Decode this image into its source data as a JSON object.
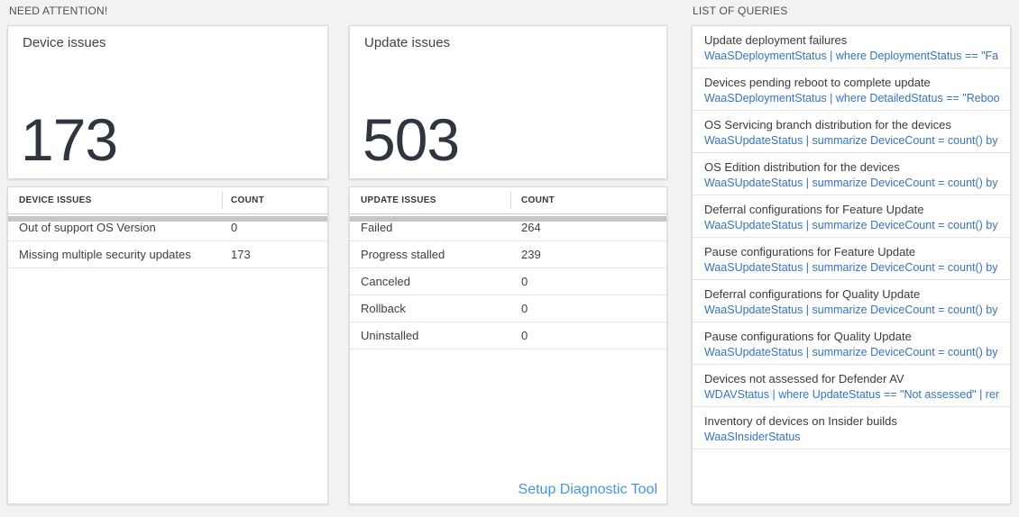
{
  "sections": {
    "need_attention_label": "NEED ATTENTION!",
    "list_of_queries_label": "LIST OF QUERIES"
  },
  "device_issues": {
    "title": "Device issues",
    "count": "173",
    "table": {
      "headers": [
        "DEVICE ISSUES",
        "COUNT"
      ],
      "rows": [
        {
          "label": "Out of support OS Version",
          "value": "0"
        },
        {
          "label": "Missing multiple security updates",
          "value": "173"
        }
      ]
    }
  },
  "update_issues": {
    "title": "Update issues",
    "count": "503",
    "table": {
      "headers": [
        "UPDATE ISSUES",
        "COUNT"
      ],
      "rows": [
        {
          "label": "Failed",
          "value": "264"
        },
        {
          "label": "Progress stalled",
          "value": "239"
        },
        {
          "label": "Canceled",
          "value": "0"
        },
        {
          "label": "Rollback",
          "value": "0"
        },
        {
          "label": "Uninstalled",
          "value": "0"
        }
      ]
    },
    "setup_link_label": "Setup Diagnostic Tool"
  },
  "queries": {
    "items": [
      {
        "title": "Update deployment failures",
        "query": "WaaSDeploymentStatus | where DeploymentStatus == \"Failed\" |..."
      },
      {
        "title": "Devices pending reboot to complete update",
        "query": "WaaSDeploymentStatus | where DetailedStatus == \"Reboot pend..."
      },
      {
        "title": "OS Servicing branch distribution for the devices",
        "query": "WaaSUpdateStatus | summarize DeviceCount = count() by OSSer..."
      },
      {
        "title": "OS Edition distribution for the devices",
        "query": "WaaSUpdateStatus | summarize DeviceCount = count() by OSEdit..."
      },
      {
        "title": "Deferral configurations for Feature Update",
        "query": "WaaSUpdateStatus | summarize DeviceCount = count() by Featur..."
      },
      {
        "title": "Pause configurations for Feature Update",
        "query": "WaaSUpdateStatus | summarize DeviceCount = count() by Featur..."
      },
      {
        "title": "Deferral configurations for Quality Update",
        "query": "WaaSUpdateStatus | summarize DeviceCount = count() by Qualit..."
      },
      {
        "title": "Pause configurations for Quality Update",
        "query": "WaaSUpdateStatus | summarize DeviceCount = count() by Qualit..."
      },
      {
        "title": "Devices not assessed for Defender AV",
        "query": "WDAVStatus | where UpdateStatus == \"Not assessed\" | render ta..."
      },
      {
        "title": "Inventory of devices on Insider builds",
        "query": "WaaSInsiderStatus"
      }
    ]
  },
  "colors": {
    "query_blue": "#3474bd",
    "link_blue": "#4896d9",
    "big_number": "#2e353e",
    "bg": "#f2f2f2"
  }
}
